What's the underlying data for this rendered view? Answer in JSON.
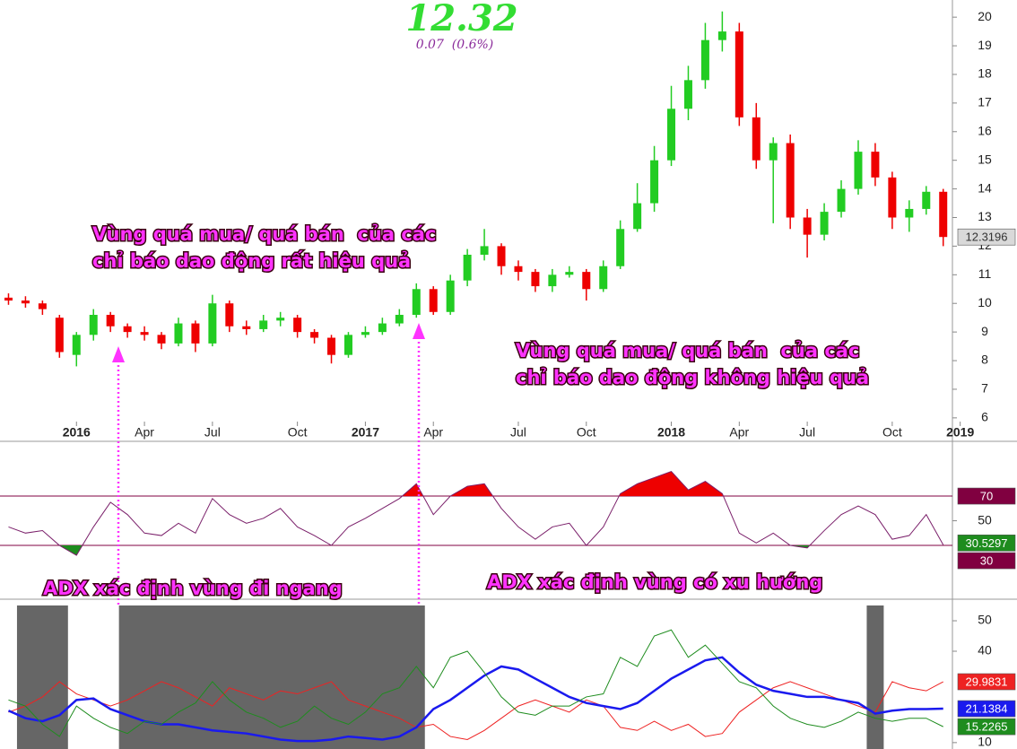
{
  "header": {
    "price": "12.32",
    "change": "0.07  (0.6%)"
  },
  "annotations": {
    "note1_line1": "Vùng quá mua/ quá bán  của các",
    "note1_line2": "chỉ báo dao động rất hiệu quả",
    "note2_line1": "Vùng quá mua/ quá bán  của các",
    "note2_line2": "chỉ báo dao động không hiệu quả",
    "adx_sideways": "ADX xác định vùng đi ngang",
    "adx_trend": "ADX xác định vùng có xu hướng"
  },
  "chart_data": [
    {
      "type": "candlestick",
      "up_color": "#22cc22",
      "down_color": "#ee0000",
      "categories": [
        null,
        null,
        null,
        null,
        "2016",
        null,
        null,
        null,
        "Apr",
        null,
        null,
        null,
        "Jul",
        null,
        null,
        null,
        null,
        "Oct",
        null,
        null,
        null,
        "2017",
        null,
        null,
        null,
        "Apr",
        null,
        null,
        null,
        null,
        "Jul",
        null,
        null,
        null,
        "Oct",
        null,
        null,
        null,
        null,
        "2018",
        null,
        null,
        null,
        "Apr",
        null,
        null,
        null,
        "Jul",
        null,
        null,
        null,
        null,
        "Oct",
        null,
        null,
        null,
        "2019"
      ],
      "open": [
        10.2,
        10.1,
        10.0,
        9.5,
        8.2,
        8.9,
        9.6,
        9.2,
        9.0,
        8.9,
        8.6,
        9.3,
        8.6,
        10.0,
        9.2,
        9.1,
        9.4,
        9.5,
        9.0,
        8.8,
        8.2,
        8.9,
        9.0,
        9.3,
        9.6,
        10.5,
        9.7,
        10.8,
        11.7,
        12.0,
        11.3,
        11.1,
        10.6,
        11.0,
        11.1,
        10.5,
        11.3,
        12.6,
        13.5,
        15.0,
        16.8,
        17.8,
        19.2,
        19.5,
        16.5,
        15.0,
        15.6,
        13.0,
        12.4,
        13.2,
        14.0,
        15.3,
        14.4,
        13.0,
        13.3,
        13.9,
        null
      ],
      "high": [
        10.35,
        10.25,
        10.1,
        9.6,
        9.0,
        9.8,
        9.7,
        9.3,
        9.2,
        9.0,
        9.5,
        9.4,
        10.3,
        10.1,
        9.4,
        9.6,
        9.7,
        9.6,
        9.1,
        8.9,
        9.0,
        9.2,
        9.5,
        9.8,
        10.7,
        10.6,
        11.0,
        11.9,
        12.6,
        12.1,
        11.5,
        11.2,
        11.2,
        11.3,
        11.2,
        11.5,
        12.9,
        14.2,
        15.5,
        17.6,
        18.3,
        19.8,
        20.2,
        19.8,
        17.0,
        15.8,
        15.9,
        13.3,
        13.5,
        14.3,
        15.7,
        15.6,
        14.6,
        13.6,
        14.1,
        14.0,
        null
      ],
      "low": [
        9.95,
        9.85,
        9.6,
        8.1,
        7.8,
        8.7,
        9.0,
        8.8,
        8.7,
        8.4,
        8.5,
        8.3,
        8.5,
        9.0,
        8.9,
        9.0,
        9.2,
        8.8,
        8.6,
        7.9,
        8.1,
        8.8,
        8.9,
        9.2,
        9.5,
        9.6,
        9.6,
        10.6,
        11.5,
        11.0,
        10.8,
        10.4,
        10.4,
        10.9,
        10.1,
        10.4,
        11.2,
        12.5,
        13.2,
        14.8,
        16.4,
        17.5,
        18.8,
        16.2,
        14.7,
        12.8,
        12.6,
        11.6,
        12.2,
        13.0,
        13.8,
        14.1,
        12.6,
        12.5,
        13.1,
        12.0,
        null
      ],
      "close": [
        10.1,
        10.0,
        9.8,
        8.3,
        8.9,
        9.6,
        9.2,
        9.0,
        8.9,
        8.6,
        9.3,
        8.6,
        10.0,
        9.2,
        9.1,
        9.4,
        9.5,
        9.0,
        8.8,
        8.2,
        8.9,
        9.0,
        9.3,
        9.6,
        10.5,
        9.7,
        10.8,
        11.7,
        12.0,
        11.3,
        11.1,
        10.6,
        11.0,
        11.1,
        10.5,
        11.3,
        12.6,
        13.5,
        15.0,
        16.8,
        17.8,
        19.2,
        19.5,
        16.5,
        15.0,
        15.6,
        13.0,
        12.4,
        13.2,
        14.0,
        15.3,
        14.4,
        13.0,
        13.3,
        13.9,
        12.3196,
        null
      ],
      "ylim": [
        5.87,
        20.6
      ],
      "yticks": [
        6,
        7,
        8,
        9,
        10,
        11,
        12,
        13,
        14,
        15,
        16,
        17,
        18,
        19,
        20
      ]
    },
    {
      "type": "line",
      "color": "#7a1f6a",
      "overbought": 70,
      "oversold": 30,
      "overbought_color": "#ee0000",
      "oversold_color": "#1e8c1e",
      "level_color": "#800040",
      "series": [
        {
          "color": "#7a1f6a",
          "values": [
            45,
            40,
            42,
            30,
            22,
            45,
            65,
            55,
            40,
            38,
            48,
            40,
            68,
            55,
            48,
            52,
            60,
            45,
            38,
            30,
            45,
            52,
            60,
            68,
            80,
            55,
            70,
            78,
            80,
            60,
            45,
            35,
            45,
            48,
            30,
            45,
            72,
            80,
            85,
            90,
            75,
            82,
            72,
            40,
            32,
            40,
            30,
            28,
            42,
            55,
            62,
            55,
            35,
            38,
            55,
            30.5297
          ]
        }
      ],
      "ylim": [
        -13.6,
        114.4
      ],
      "yticks": [
        50
      ]
    },
    {
      "type": "line",
      "shade_below": 20,
      "shade_color": "#666666",
      "series": [
        {
          "color": "#ee2222",
          "values": [
            20,
            22,
            25,
            30,
            26,
            24,
            22,
            24,
            27,
            30,
            28,
            25,
            22,
            28,
            26,
            24,
            27,
            26,
            28,
            30,
            24,
            22,
            20,
            18,
            15,
            16,
            12,
            11,
            14,
            18,
            22,
            24,
            22,
            20,
            24,
            22,
            15,
            14,
            17,
            14,
            16,
            12,
            13,
            20,
            24,
            28,
            30,
            28,
            26,
            24,
            22,
            20,
            30,
            28,
            27,
            29.9831
          ]
        },
        {
          "color": "#1a1aee",
          "values": [
            20.5,
            18,
            17,
            19,
            24,
            24.5,
            21,
            19,
            17,
            16,
            16,
            15,
            14,
            13.5,
            13,
            12,
            11,
            10.5,
            10.5,
            11,
            12,
            11.5,
            11,
            12,
            15,
            21,
            24,
            28,
            32,
            35,
            34,
            31,
            28,
            25,
            23,
            22,
            21,
            23,
            27,
            31,
            34,
            37,
            38,
            33,
            29,
            27,
            26,
            25,
            25,
            24,
            23,
            19.5,
            20.5,
            21,
            21,
            21.1384
          ]
        },
        {
          "color": "#1e8c1e",
          "values": [
            24,
            22,
            16,
            12,
            22,
            18,
            15,
            13,
            17,
            16,
            20,
            23,
            30,
            24,
            20,
            18,
            15,
            17,
            22,
            18,
            16,
            20,
            26,
            28,
            35,
            28,
            38,
            40,
            33,
            25,
            20,
            19,
            22,
            22,
            25,
            26,
            38,
            35,
            45,
            47,
            38,
            42,
            36,
            30,
            28,
            22,
            18,
            16,
            15,
            17,
            20,
            18,
            17,
            18,
            18,
            15.2265
          ]
        }
      ],
      "ylim": [
        7.9,
        55.9
      ],
      "yticks": [
        10,
        40,
        50
      ]
    }
  ]
}
